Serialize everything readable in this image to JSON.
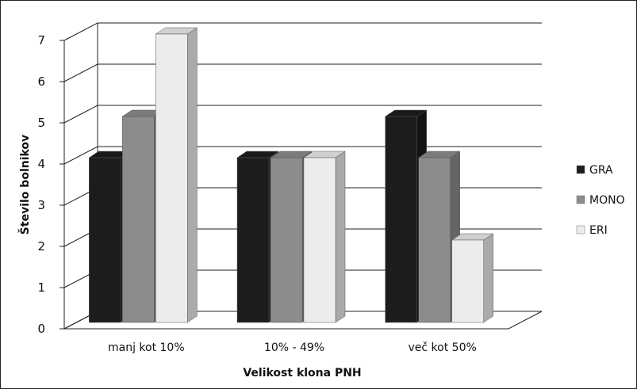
{
  "chart_data": {
    "type": "bar",
    "style": "3d-clustered-column",
    "categories": [
      "manj kot 10%",
      "10% - 49%",
      "več kot 50%"
    ],
    "series": [
      {
        "name": "GRA",
        "values": [
          4,
          4,
          5
        ],
        "color": "#1c1c1c"
      },
      {
        "name": "MONO",
        "values": [
          5,
          4,
          4
        ],
        "color": "#8c8c8c"
      },
      {
        "name": "ERI",
        "values": [
          7,
          4,
          2
        ],
        "color": "#ececec"
      }
    ],
    "xlabel": "Velikost klona PNH",
    "ylabel": "Število bolnikov",
    "ylim": [
      0,
      7
    ],
    "yticks": [
      "0",
      "1",
      "2",
      "3",
      "4",
      "5",
      "6",
      "7"
    ],
    "grid": true,
    "legend": "right"
  }
}
